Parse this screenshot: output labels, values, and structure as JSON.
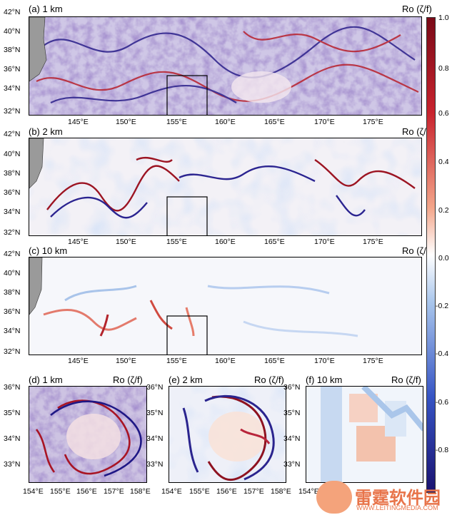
{
  "colorbar": {
    "ticks": [
      "1.0",
      "0.8",
      "0.6",
      "0.4",
      "0.2",
      "0.0",
      "-0.2",
      "-0.4",
      "-0.6",
      "-0.8"
    ],
    "colors": {
      "positive": "#8b0a1a",
      "zero": "#ffffff",
      "negative": "#1d1677"
    }
  },
  "panels": {
    "a": {
      "label": "(a) 1 km",
      "var": "Ro (ζ/f)"
    },
    "b": {
      "label": "(b) 2 km",
      "var": "Ro (ζ/f)"
    },
    "c": {
      "label": "(c) 10 km",
      "var": "Ro (ζ/f)"
    },
    "d": {
      "label": "(d) 1 km",
      "var": "Ro (ζ/f)"
    },
    "e": {
      "label": "(e) 2 km",
      "var": "Ro (ζ/f)"
    },
    "f": {
      "label": "(f) 10 km",
      "var": "Ro (ζ/f)"
    }
  },
  "top_axes": {
    "lat_ticks": [
      "42°N",
      "40°N",
      "38°N",
      "36°N",
      "34°N",
      "32°N"
    ],
    "lon_ticks": [
      "145°E",
      "150°E",
      "155°E",
      "160°E",
      "165°E",
      "170°E",
      "175°E"
    ]
  },
  "zoom_axes": {
    "lat_ticks": [
      "36°N",
      "35°N",
      "34°N",
      "33°N"
    ],
    "lon_ticks": [
      "154°E",
      "155°E",
      "156°E",
      "157°E",
      "158°E"
    ]
  },
  "watermark": {
    "name": "雷霆软件园",
    "url": "WWW.LEITINGMEDIA.COM"
  }
}
